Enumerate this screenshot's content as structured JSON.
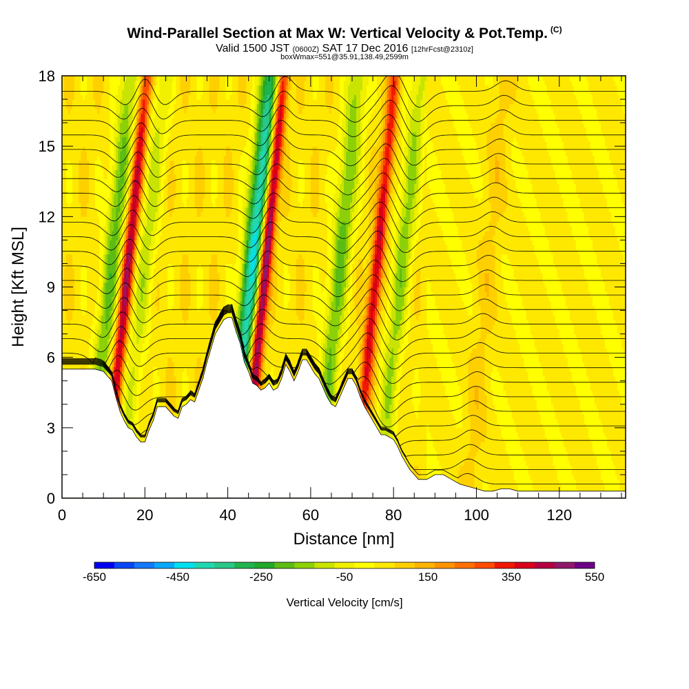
{
  "title": {
    "main": "Wind-Parallel Section at Max W: Vertical Velocity & Pot.Temp.",
    "copyright": "(C)",
    "valid_prefix": "Valid 1500 JST",
    "valid_utc": "(0600Z)",
    "valid_date": "SAT 17 Dec 2016",
    "forecast": "[12hrFcst@2310z]",
    "box_info": "boxWmax=551@35.91,138.49,2599m"
  },
  "chart_data": {
    "type": "heatmap",
    "xlabel": "Distance [nm]",
    "ylabel": "Height [Kft MSL]",
    "xlim": [
      0,
      136
    ],
    "ylim": [
      0,
      18
    ],
    "x_ticks": [
      0,
      20,
      40,
      60,
      80,
      100,
      120
    ],
    "y_ticks": [
      0,
      3,
      6,
      9,
      12,
      15,
      18
    ],
    "grid": false,
    "colorbar": {
      "label": "Vertical Velocity [cm/s]",
      "placement": "bottom",
      "tick_labels": [
        "-650",
        "-450",
        "-250",
        "-50",
        "150",
        "350",
        "550"
      ],
      "tick_values": [
        -650,
        -450,
        -250,
        -50,
        150,
        350,
        550
      ],
      "levels": [
        -650,
        -600,
        -550,
        -500,
        -450,
        -400,
        -350,
        -300,
        -250,
        -200,
        -150,
        -100,
        -50,
        0,
        50,
        100,
        150,
        200,
        250,
        300,
        350,
        400,
        450,
        500,
        550
      ],
      "colors": [
        "#0000f0",
        "#0a46f5",
        "#1478f8",
        "#0aa8fa",
        "#00e0f0",
        "#20d8b0",
        "#28c888",
        "#20b450",
        "#22a82a",
        "#5cbc14",
        "#8cd008",
        "#c8e400",
        "#f0f000",
        "#ffff00",
        "#ffe800",
        "#ffd000",
        "#ffb400",
        "#ff9400",
        "#ff7000",
        "#ff4c00",
        "#f01800",
        "#d8001a",
        "#b40040",
        "#901868",
        "#6c0088"
      ]
    },
    "terrain_kft": [
      [
        0,
        5.5
      ],
      [
        8,
        5.5
      ],
      [
        10,
        5.4
      ],
      [
        12,
        5.0
      ],
      [
        13,
        4.3
      ],
      [
        14,
        3.7
      ],
      [
        15,
        3.3
      ],
      [
        16,
        3.0
      ],
      [
        17,
        2.9
      ],
      [
        18,
        2.6
      ],
      [
        19,
        2.4
      ],
      [
        20,
        2.4
      ],
      [
        21,
        2.9
      ],
      [
        22,
        3.3
      ],
      [
        23,
        3.9
      ],
      [
        25,
        3.9
      ],
      [
        26,
        3.7
      ],
      [
        27,
        3.5
      ],
      [
        28,
        3.4
      ],
      [
        29,
        3.9
      ],
      [
        30,
        4.0
      ],
      [
        31,
        4.2
      ],
      [
        32,
        4.1
      ],
      [
        33,
        4.6
      ],
      [
        34,
        5.1
      ],
      [
        35,
        5.8
      ],
      [
        36,
        6.4
      ],
      [
        37,
        7.0
      ],
      [
        38,
        7.3
      ],
      [
        39,
        7.6
      ],
      [
        40,
        7.7
      ],
      [
        41,
        7.7
      ],
      [
        42,
        7.1
      ],
      [
        43,
        6.6
      ],
      [
        44,
        5.8
      ],
      [
        45,
        5.4
      ],
      [
        46,
        4.9
      ],
      [
        47,
        4.8
      ],
      [
        48,
        4.6
      ],
      [
        49,
        4.7
      ],
      [
        50,
        4.9
      ],
      [
        51,
        4.6
      ],
      [
        52,
        4.7
      ],
      [
        53,
        5.1
      ],
      [
        54,
        5.7
      ],
      [
        55,
        5.4
      ],
      [
        56,
        5.0
      ],
      [
        57,
        5.4
      ],
      [
        58,
        5.9
      ],
      [
        59,
        5.9
      ],
      [
        60,
        5.6
      ],
      [
        61,
        5.3
      ],
      [
        62,
        5.1
      ],
      [
        63,
        4.7
      ],
      [
        64,
        4.3
      ],
      [
        65,
        4.0
      ],
      [
        66,
        3.9
      ],
      [
        67,
        4.3
      ],
      [
        68,
        4.7
      ],
      [
        69,
        5.1
      ],
      [
        70,
        5.1
      ],
      [
        71,
        4.8
      ],
      [
        72,
        4.3
      ],
      [
        73,
        3.9
      ],
      [
        74,
        3.6
      ],
      [
        75,
        3.3
      ],
      [
        76,
        3.0
      ],
      [
        77,
        2.7
      ],
      [
        78,
        2.7
      ],
      [
        79,
        2.6
      ],
      [
        80,
        2.5
      ],
      [
        81,
        2.2
      ],
      [
        82,
        1.8
      ],
      [
        83,
        1.5
      ],
      [
        84,
        1.2
      ],
      [
        85,
        1.0
      ],
      [
        86,
        0.8
      ],
      [
        88,
        0.8
      ],
      [
        90,
        1.0
      ],
      [
        92,
        1.0
      ],
      [
        94,
        0.8
      ],
      [
        96,
        0.6
      ],
      [
        98,
        0.5
      ],
      [
        100,
        0.4
      ],
      [
        102,
        0.3
      ],
      [
        104,
        0.3
      ],
      [
        106,
        0.4
      ],
      [
        108,
        0.4
      ],
      [
        110,
        0.3
      ],
      [
        112,
        0.3
      ],
      [
        114,
        0.3
      ],
      [
        136,
        0.3
      ]
    ],
    "updraft_peaks_cm_s": [
      {
        "x": 16,
        "w": 430
      },
      {
        "x": 49,
        "w": 551
      },
      {
        "x": 76,
        "w": 380
      },
      {
        "x": 103,
        "w": 150
      }
    ],
    "downdraft_peaks_cm_s": [
      {
        "x": 12,
        "w": -250
      },
      {
        "x": 20,
        "w": -150
      },
      {
        "x": 46,
        "w": -500
      },
      {
        "x": 67,
        "w": -250
      },
      {
        "x": 82,
        "w": -200
      }
    ],
    "isentrope_count": 28
  }
}
